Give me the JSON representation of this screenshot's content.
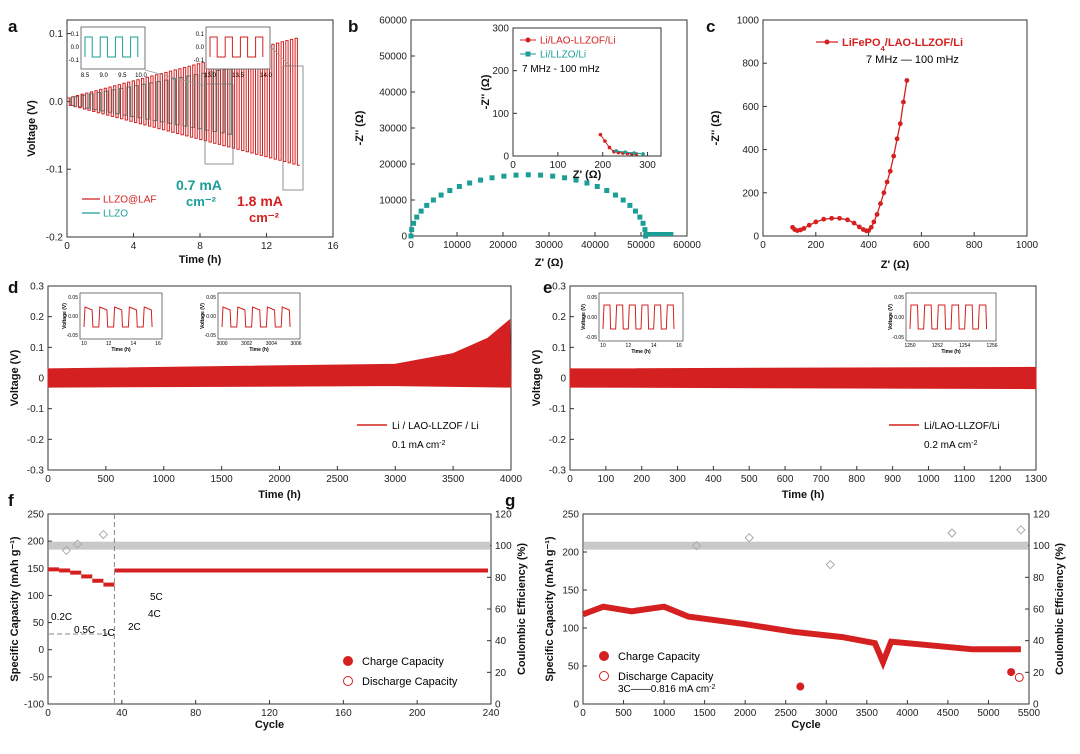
{
  "colors": {
    "red": "#d42020",
    "teal": "#1a9e96",
    "grey": "#8a8a8a"
  },
  "chart_data": [
    {
      "id": "a",
      "panel_label": "a",
      "type": "line",
      "xlabel": "Time (h)",
      "ylabel": "Voltage (V)",
      "xlim": [
        0,
        16
      ],
      "ylim": [
        -0.2,
        0.12
      ],
      "xticks": [
        0,
        4,
        8,
        12,
        16
      ],
      "yticks": [
        -0.2,
        -0.1,
        0.0,
        0.1
      ],
      "series": [
        {
          "name": "LLZO@LAF",
          "color": "#d42020",
          "t_start": 0,
          "t_end": 14,
          "amp_start": 0.005,
          "amp_end": 0.095
        },
        {
          "name": "LLZO",
          "color": "#1a9e96",
          "t_start": 0,
          "t_end": 10,
          "amp_start": 0.005,
          "amp_end": 0.05
        }
      ],
      "annotations": [
        {
          "text": "0.7 mA",
          "sub": "cm⁻²",
          "color": "#1a9e96"
        },
        {
          "text": "1.8 mA",
          "sub": "cm⁻²",
          "color": "#d42020"
        }
      ],
      "insets": [
        {
          "xticks": [
            "8.5",
            "9.0",
            "9.5",
            "10.0"
          ],
          "yticks": [
            "0.1",
            "0.0",
            "-0.1"
          ],
          "color": "#1a9e96"
        },
        {
          "xticks": [
            "13.0",
            "13.5",
            "14.0"
          ],
          "yticks": [
            "0.1",
            "0.0",
            "-0.1"
          ],
          "color": "#d42020"
        }
      ]
    },
    {
      "id": "b",
      "panel_label": "b",
      "type": "scatter",
      "xlabel": "Z' (Ω)",
      "ylabel": "-Z'' (Ω)",
      "xlim": [
        0,
        60000
      ],
      "ylim": [
        0,
        60000
      ],
      "xticks": [
        0,
        10000,
        20000,
        30000,
        40000,
        50000,
        60000
      ],
      "yticks": [
        0,
        10000,
        20000,
        30000,
        40000,
        50000,
        60000
      ],
      "series": [
        {
          "name": "Li/LLZO/Li",
          "color": "#1a9e96",
          "semicircle": {
            "x0": 0,
            "x1": 51000,
            "peak": 17000
          },
          "tail_to": 57000
        }
      ],
      "inset": {
        "xlabel": "Z' (Ω)",
        "ylabel": "-Z'' (Ω)",
        "xlim": [
          0,
          330
        ],
        "ylim": [
          0,
          300
        ],
        "xticks": [
          0,
          100,
          200,
          300
        ],
        "yticks": [
          0,
          100,
          200,
          300
        ],
        "range_text": "7 MHz - 100 mHz",
        "legend": [
          {
            "name": "Li/LAO-LLZOF/Li",
            "color": "#d42020"
          },
          {
            "name": "Li/LLZO/Li",
            "color": "#1a9e96"
          }
        ],
        "series": [
          {
            "name": "Li/LAO-LLZOF/Li",
            "color": "#d42020",
            "x": [
              195,
              205,
              215,
              225,
              235,
              245,
              255,
              265,
              275
            ],
            "y": [
              50,
              35,
              20,
              10,
              8,
              7,
              6,
              5,
              5
            ]
          },
          {
            "name": "Li/LLZO/Li",
            "color": "#1a9e96",
            "x": [
              230,
              250,
              270,
              290
            ],
            "y": [
              12,
              9,
              7,
              5
            ]
          }
        ]
      }
    },
    {
      "id": "c",
      "panel_label": "c",
      "type": "line",
      "xlabel": "Z' (Ω)",
      "ylabel": "-Z'' (Ω)",
      "xlim": [
        0,
        1000
      ],
      "ylim": [
        0,
        1000
      ],
      "xticks": [
        0,
        200,
        400,
        600,
        800,
        1000
      ],
      "yticks": [
        0,
        200,
        400,
        600,
        800,
        1000
      ],
      "range_text": "7 MHz — 100 mHz",
      "series": [
        {
          "name": "LiFePO4/LAO-LLZOF/Li",
          "color": "#d42020",
          "x": [
            112,
            120,
            130,
            142,
            155,
            175,
            200,
            230,
            260,
            290,
            320,
            345,
            365,
            380,
            392,
            400,
            410,
            420,
            432,
            445,
            458,
            470,
            482,
            495,
            508,
            520,
            532,
            545
          ],
          "y": [
            40,
            30,
            25,
            28,
            35,
            50,
            65,
            78,
            82,
            82,
            75,
            60,
            42,
            30,
            24,
            25,
            40,
            65,
            100,
            150,
            200,
            250,
            300,
            370,
            450,
            520,
            620,
            720
          ]
        }
      ]
    },
    {
      "id": "d",
      "panel_label": "d",
      "type": "line",
      "xlabel": "Time (h)",
      "ylabel": "Voltage (V)",
      "xlim": [
        0,
        4000
      ],
      "ylim": [
        -0.3,
        0.3
      ],
      "xticks": [
        0,
        500,
        1000,
        1500,
        2000,
        2500,
        3000,
        3500,
        4000
      ],
      "yticks": [
        -0.3,
        -0.2,
        -0.1,
        0.0,
        0.1,
        0.2,
        0.3
      ],
      "legend": {
        "name": "Li / LAO-LLZOF / Li",
        "current": "0.1 mA cm⁻²"
      },
      "series": [
        {
          "name": "Li / LAO-LLZOF / Li",
          "color": "#d42020",
          "upper": [
            [
              0,
              0.03
            ],
            [
              3000,
              0.045
            ],
            [
              3500,
              0.08
            ],
            [
              3800,
              0.13
            ],
            [
              3990,
              0.19
            ]
          ],
          "lower": [
            [
              0,
              -0.03
            ],
            [
              3000,
              -0.025
            ],
            [
              4000,
              -0.03
            ]
          ]
        }
      ],
      "insets": [
        {
          "xticks": [
            "10",
            "12",
            "14",
            "16"
          ],
          "yticks": [
            "0.05",
            "0.00",
            "-0.05"
          ],
          "xlabel": "Time (h)",
          "ylabel": "Voltage (V)"
        },
        {
          "xticks": [
            "3000",
            "3002",
            "3004",
            "3006"
          ],
          "yticks": [
            "0.05",
            "0.00",
            "-0.05"
          ],
          "xlabel": "Time (h)",
          "ylabel": "Voltage (V)"
        }
      ]
    },
    {
      "id": "e",
      "panel_label": "e",
      "type": "line",
      "xlabel": "Time (h)",
      "ylabel": "Voltage (V)",
      "xlim": [
        0,
        1300
      ],
      "ylim": [
        -0.3,
        0.3
      ],
      "xticks": [
        0,
        100,
        200,
        300,
        400,
        500,
        600,
        700,
        800,
        900,
        1000,
        1100,
        1200,
        1300
      ],
      "yticks": [
        -0.3,
        -0.2,
        -0.1,
        0.0,
        0.1,
        0.2,
        0.3
      ],
      "legend": {
        "name": "Li/LAO-LLZOF/Li",
        "current": "0.2 mA cm⁻²"
      },
      "series": [
        {
          "name": "Li/LAO-LLZOF/Li",
          "color": "#d42020",
          "upper": [
            [
              0,
              0.03
            ],
            [
              1300,
              0.035
            ]
          ],
          "lower": [
            [
              0,
              -0.03
            ],
            [
              1300,
              -0.035
            ]
          ]
        }
      ],
      "insets": [
        {
          "xticks": [
            "10",
            "12",
            "14",
            "16"
          ],
          "yticks": [
            "0.05",
            "0.00",
            "-0.05"
          ],
          "xlabel": "Time (h)",
          "ylabel": "Voltage (V)"
        },
        {
          "xticks": [
            "1250",
            "1252",
            "1254",
            "1256"
          ],
          "yticks": [
            "0.05",
            "0.00",
            "-0.05"
          ],
          "xlabel": "Time (h)",
          "ylabel": "Voltage (V)"
        }
      ]
    },
    {
      "id": "f",
      "panel_label": "f",
      "type": "scatter",
      "xlabel": "Cycle",
      "ylabel": "Specific Capacity (mAh g⁻¹)",
      "y2label": "Coulombic Efficiency (%)",
      "xlim": [
        0,
        240
      ],
      "ylim": [
        -100,
        250
      ],
      "y2lim": [
        0,
        120
      ],
      "xticks": [
        0,
        40,
        80,
        120,
        160,
        200,
        240
      ],
      "yticks": [
        -100,
        -50,
        0,
        50,
        100,
        150,
        200,
        250
      ],
      "y2ticks": [
        0,
        20,
        40,
        60,
        80,
        100,
        120
      ],
      "legend": [
        "Charge Capacity",
        "Discharge Capacity"
      ],
      "rate_labels": [
        "0.2C",
        "0.5C",
        "1C",
        "2C",
        "4C",
        "5C"
      ],
      "rate_segments": [
        {
          "from": 0,
          "to": 6,
          "cap": 148
        },
        {
          "from": 6,
          "to": 12,
          "cap": 146
        },
        {
          "from": 12,
          "to": 18,
          "cap": 142
        },
        {
          "from": 18,
          "to": 24,
          "cap": 135
        },
        {
          "from": 24,
          "to": 30,
          "cap": 127
        },
        {
          "from": 30,
          "to": 36,
          "cap": 120
        }
      ],
      "steady_capacity": 146,
      "steady_from": 36,
      "ce_value": 100
    },
    {
      "id": "g",
      "panel_label": "g",
      "type": "scatter",
      "xlabel": "Cycle",
      "ylabel": "Specific Capacity (mAh g⁻¹)",
      "y2label": "Coulombic Efficiency (%)",
      "xlim": [
        0,
        5500
      ],
      "ylim": [
        0,
        250
      ],
      "y2lim": [
        0,
        120
      ],
      "xticks": [
        0,
        500,
        1000,
        1500,
        2000,
        2500,
        3000,
        3500,
        4000,
        4500,
        5000,
        5500
      ],
      "yticks": [
        0,
        50,
        100,
        150,
        200,
        250
      ],
      "y2ticks": [
        0,
        20,
        40,
        60,
        80,
        100,
        120
      ],
      "legend": [
        "Charge Capacity",
        "Discharge Capacity"
      ],
      "rate_text": "3C——0.816 mA cm⁻²",
      "capacity_trend": [
        [
          0,
          118
        ],
        [
          250,
          128
        ],
        [
          600,
          122
        ],
        [
          1000,
          128
        ],
        [
          1300,
          115
        ],
        [
          2000,
          105
        ],
        [
          2600,
          95
        ],
        [
          3200,
          88
        ],
        [
          3600,
          80
        ],
        [
          3700,
          55
        ],
        [
          3800,
          82
        ],
        [
          4200,
          78
        ],
        [
          4800,
          72
        ],
        [
          5400,
          72
        ]
      ],
      "ce_value": 100
    }
  ]
}
